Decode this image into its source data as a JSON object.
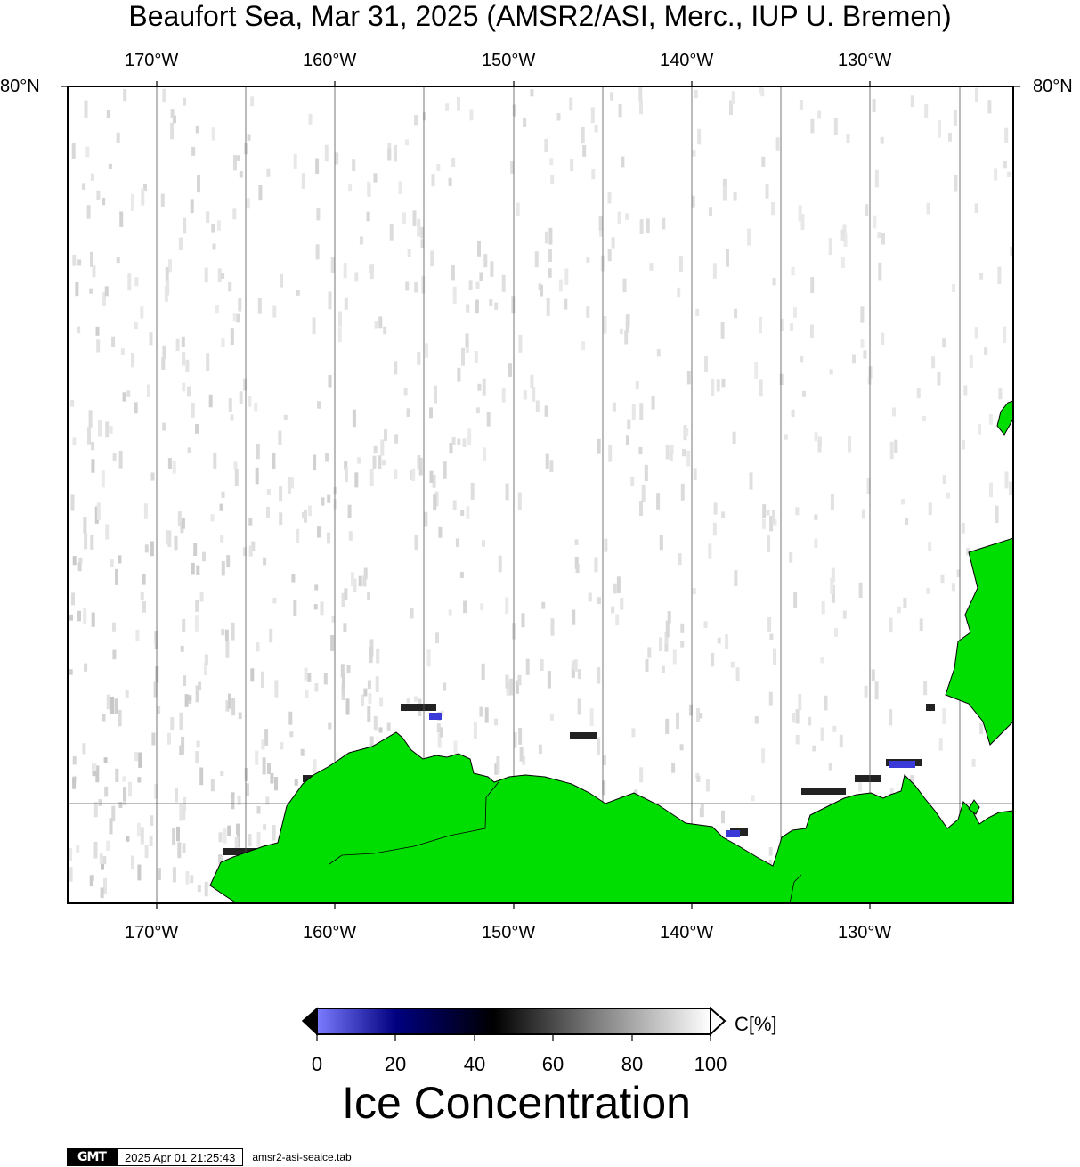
{
  "title": "Beaufort Sea, Mar 31, 2025 (AMSR2/ASI, Merc., IUP U. Bremen)",
  "map": {
    "lon_range": [
      -175,
      -122
    ],
    "lat_top_label": "80°N",
    "projection": "Mercator",
    "lon_ticks": [
      "170°W",
      "160°W",
      "150°W",
      "140°W",
      "130°W"
    ],
    "land_color": "#00dd00",
    "background_color": "#ffffff",
    "gridline_color": "#555555"
  },
  "colorbar": {
    "unit": "C[%]",
    "ticks": [
      "0",
      "20",
      "40",
      "60",
      "80",
      "100"
    ],
    "stops": [
      "#7b7bff",
      "#000080",
      "#000000",
      "#808080",
      "#ffffff"
    ],
    "title": "Ice Concentration"
  },
  "footer": {
    "logo": "GMT",
    "timestamp": "2025 Apr 01 21:25:43",
    "source_file": "amsr2-asi-seaice.tab"
  }
}
